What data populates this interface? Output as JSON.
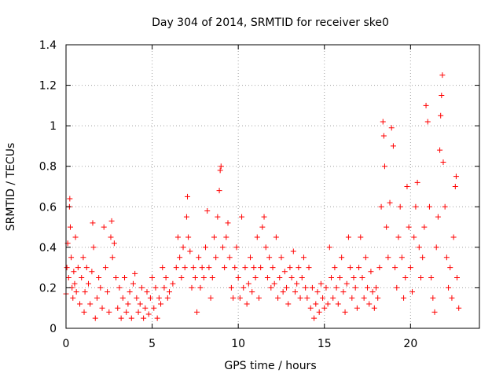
{
  "chart_data": {
    "type": "scatter",
    "title": "Day 304 of 2014, SRMTID for receiver ske0",
    "xlabel": "GPS time / hours",
    "ylabel": "SRMTID / TECUs",
    "xlim": [
      0,
      24
    ],
    "ylim": [
      0,
      1.4
    ],
    "xticks": [
      0,
      5,
      10,
      15,
      20
    ],
    "xtick_labels": [
      "0",
      "5",
      "10",
      "15",
      "20"
    ],
    "yticks": [
      0,
      0.2,
      0.4,
      0.6,
      0.8,
      1,
      1.2,
      1.4
    ],
    "ytick_labels": [
      "0",
      "0.2",
      "0.4",
      "0.6",
      "0.8",
      "1",
      "1.2",
      "1.4"
    ],
    "grid": true,
    "marker": "+",
    "color": "#ff0000",
    "series": [
      {
        "name": "ske0",
        "points": [
          [
            0.0,
            0.17
          ],
          [
            0.05,
            0.3
          ],
          [
            0.1,
            0.42
          ],
          [
            0.15,
            0.25
          ],
          [
            0.2,
            0.6
          ],
          [
            0.22,
            0.64
          ],
          [
            0.25,
            0.5
          ],
          [
            0.3,
            0.35
          ],
          [
            0.35,
            0.2
          ],
          [
            0.4,
            0.15
          ],
          [
            0.45,
            0.28
          ],
          [
            0.5,
            0.22
          ],
          [
            0.55,
            0.45
          ],
          [
            0.6,
            0.18
          ],
          [
            0.7,
            0.3
          ],
          [
            0.8,
            0.12
          ],
          [
            0.9,
            0.25
          ],
          [
            1.0,
            0.35
          ],
          [
            1.05,
            0.08
          ],
          [
            1.1,
            0.18
          ],
          [
            1.2,
            0.3
          ],
          [
            1.3,
            0.22
          ],
          [
            1.4,
            0.12
          ],
          [
            1.5,
            0.28
          ],
          [
            1.55,
            0.52
          ],
          [
            1.6,
            0.4
          ],
          [
            1.7,
            0.05
          ],
          [
            1.8,
            0.15
          ],
          [
            1.9,
            0.25
          ],
          [
            2.0,
            0.2
          ],
          [
            2.1,
            0.1
          ],
          [
            2.2,
            0.5
          ],
          [
            2.3,
            0.3
          ],
          [
            2.4,
            0.18
          ],
          [
            2.5,
            0.08
          ],
          [
            2.6,
            0.45
          ],
          [
            2.65,
            0.53
          ],
          [
            2.7,
            0.35
          ],
          [
            2.8,
            0.42
          ],
          [
            2.9,
            0.25
          ],
          [
            3.0,
            0.1
          ],
          [
            3.1,
            0.2
          ],
          [
            3.2,
            0.05
          ],
          [
            3.3,
            0.15
          ],
          [
            3.4,
            0.25
          ],
          [
            3.5,
            0.08
          ],
          [
            3.6,
            0.12
          ],
          [
            3.7,
            0.18
          ],
          [
            3.8,
            0.05
          ],
          [
            3.9,
            0.22
          ],
          [
            4.0,
            0.27
          ],
          [
            4.1,
            0.15
          ],
          [
            4.2,
            0.08
          ],
          [
            4.3,
            0.12
          ],
          [
            4.4,
            0.2
          ],
          [
            4.5,
            0.05
          ],
          [
            4.6,
            0.1
          ],
          [
            4.7,
            0.18
          ],
          [
            4.8,
            0.07
          ],
          [
            4.9,
            0.15
          ],
          [
            5.0,
            0.25
          ],
          [
            5.1,
            0.1
          ],
          [
            5.2,
            0.2
          ],
          [
            5.3,
            0.05
          ],
          [
            5.4,
            0.15
          ],
          [
            5.5,
            0.12
          ],
          [
            5.6,
            0.3
          ],
          [
            5.7,
            0.2
          ],
          [
            5.8,
            0.25
          ],
          [
            5.9,
            0.15
          ],
          [
            6.0,
            0.18
          ],
          [
            6.2,
            0.22
          ],
          [
            6.4,
            0.3
          ],
          [
            6.5,
            0.45
          ],
          [
            6.6,
            0.35
          ],
          [
            6.7,
            0.25
          ],
          [
            6.8,
            0.4
          ],
          [
            6.9,
            0.3
          ],
          [
            7.0,
            0.55
          ],
          [
            7.05,
            0.65
          ],
          [
            7.1,
            0.45
          ],
          [
            7.2,
            0.38
          ],
          [
            7.3,
            0.2
          ],
          [
            7.4,
            0.3
          ],
          [
            7.5,
            0.25
          ],
          [
            7.6,
            0.08
          ],
          [
            7.7,
            0.35
          ],
          [
            7.8,
            0.2
          ],
          [
            7.9,
            0.3
          ],
          [
            8.0,
            0.25
          ],
          [
            8.1,
            0.4
          ],
          [
            8.2,
            0.58
          ],
          [
            8.3,
            0.3
          ],
          [
            8.4,
            0.15
          ],
          [
            8.5,
            0.25
          ],
          [
            8.6,
            0.45
          ],
          [
            8.7,
            0.35
          ],
          [
            8.8,
            0.55
          ],
          [
            8.9,
            0.68
          ],
          [
            8.95,
            0.78
          ],
          [
            9.0,
            0.8
          ],
          [
            9.1,
            0.4
          ],
          [
            9.2,
            0.3
          ],
          [
            9.3,
            0.45
          ],
          [
            9.4,
            0.52
          ],
          [
            9.5,
            0.35
          ],
          [
            9.6,
            0.2
          ],
          [
            9.7,
            0.15
          ],
          [
            9.8,
            0.3
          ],
          [
            9.9,
            0.4
          ],
          [
            10.0,
            0.25
          ],
          [
            10.1,
            0.15
          ],
          [
            10.2,
            0.55
          ],
          [
            10.3,
            0.2
          ],
          [
            10.4,
            0.3
          ],
          [
            10.5,
            0.12
          ],
          [
            10.6,
            0.22
          ],
          [
            10.7,
            0.35
          ],
          [
            10.8,
            0.18
          ],
          [
            10.9,
            0.3
          ],
          [
            11.0,
            0.25
          ],
          [
            11.1,
            0.45
          ],
          [
            11.2,
            0.15
          ],
          [
            11.3,
            0.3
          ],
          [
            11.4,
            0.5
          ],
          [
            11.5,
            0.55
          ],
          [
            11.6,
            0.4
          ],
          [
            11.7,
            0.25
          ],
          [
            11.8,
            0.35
          ],
          [
            11.9,
            0.2
          ],
          [
            12.0,
            0.3
          ],
          [
            12.1,
            0.22
          ],
          [
            12.2,
            0.45
          ],
          [
            12.3,
            0.15
          ],
          [
            12.4,
            0.25
          ],
          [
            12.5,
            0.35
          ],
          [
            12.6,
            0.18
          ],
          [
            12.7,
            0.28
          ],
          [
            12.8,
            0.2
          ],
          [
            12.9,
            0.12
          ],
          [
            13.0,
            0.3
          ],
          [
            13.1,
            0.25
          ],
          [
            13.2,
            0.38
          ],
          [
            13.3,
            0.18
          ],
          [
            13.4,
            0.22
          ],
          [
            13.5,
            0.3
          ],
          [
            13.6,
            0.15
          ],
          [
            13.7,
            0.25
          ],
          [
            13.8,
            0.35
          ],
          [
            13.9,
            0.2
          ],
          [
            14.0,
            0.15
          ],
          [
            14.1,
            0.3
          ],
          [
            14.2,
            0.1
          ],
          [
            14.3,
            0.2
          ],
          [
            14.4,
            0.05
          ],
          [
            14.5,
            0.12
          ],
          [
            14.6,
            0.18
          ],
          [
            14.7,
            0.08
          ],
          [
            14.8,
            0.22
          ],
          [
            14.9,
            0.15
          ],
          [
            15.0,
            0.1
          ],
          [
            15.1,
            0.2
          ],
          [
            15.2,
            0.12
          ],
          [
            15.3,
            0.4
          ],
          [
            15.4,
            0.25
          ],
          [
            15.5,
            0.15
          ],
          [
            15.6,
            0.3
          ],
          [
            15.7,
            0.2
          ],
          [
            15.8,
            0.12
          ],
          [
            15.9,
            0.25
          ],
          [
            16.0,
            0.35
          ],
          [
            16.1,
            0.18
          ],
          [
            16.2,
            0.08
          ],
          [
            16.3,
            0.22
          ],
          [
            16.4,
            0.45
          ],
          [
            16.5,
            0.3
          ],
          [
            16.6,
            0.15
          ],
          [
            16.7,
            0.25
          ],
          [
            16.8,
            0.2
          ],
          [
            16.9,
            0.1
          ],
          [
            17.0,
            0.3
          ],
          [
            17.1,
            0.45
          ],
          [
            17.2,
            0.25
          ],
          [
            17.3,
            0.15
          ],
          [
            17.4,
            0.35
          ],
          [
            17.5,
            0.2
          ],
          [
            17.6,
            0.12
          ],
          [
            17.7,
            0.28
          ],
          [
            17.8,
            0.18
          ],
          [
            17.9,
            0.1
          ],
          [
            18.0,
            0.2
          ],
          [
            18.1,
            0.15
          ],
          [
            18.2,
            0.3
          ],
          [
            18.3,
            0.6
          ],
          [
            18.4,
            1.02
          ],
          [
            18.45,
            0.95
          ],
          [
            18.5,
            0.8
          ],
          [
            18.6,
            0.5
          ],
          [
            18.7,
            0.35
          ],
          [
            18.8,
            0.62
          ],
          [
            18.9,
            0.99
          ],
          [
            19.0,
            0.9
          ],
          [
            19.1,
            0.3
          ],
          [
            19.2,
            0.2
          ],
          [
            19.3,
            0.45
          ],
          [
            19.4,
            0.6
          ],
          [
            19.5,
            0.35
          ],
          [
            19.6,
            0.15
          ],
          [
            19.7,
            0.25
          ],
          [
            19.8,
            0.7
          ],
          [
            19.9,
            0.5
          ],
          [
            20.0,
            0.3
          ],
          [
            20.1,
            0.18
          ],
          [
            20.2,
            0.45
          ],
          [
            20.3,
            0.6
          ],
          [
            20.4,
            0.72
          ],
          [
            20.5,
            0.4
          ],
          [
            20.6,
            0.25
          ],
          [
            20.7,
            0.35
          ],
          [
            20.8,
            0.5
          ],
          [
            20.9,
            1.1
          ],
          [
            21.0,
            1.02
          ],
          [
            21.1,
            0.6
          ],
          [
            21.2,
            0.25
          ],
          [
            21.3,
            0.15
          ],
          [
            21.4,
            0.08
          ],
          [
            21.5,
            0.4
          ],
          [
            21.6,
            0.55
          ],
          [
            21.7,
            0.88
          ],
          [
            21.75,
            1.05
          ],
          [
            21.8,
            1.15
          ],
          [
            21.85,
            1.25
          ],
          [
            21.9,
            0.82
          ],
          [
            22.0,
            0.6
          ],
          [
            22.1,
            0.35
          ],
          [
            22.2,
            0.2
          ],
          [
            22.3,
            0.3
          ],
          [
            22.4,
            0.15
          ],
          [
            22.5,
            0.45
          ],
          [
            22.6,
            0.7
          ],
          [
            22.65,
            0.75
          ],
          [
            22.7,
            0.25
          ],
          [
            22.8,
            0.1
          ]
        ]
      }
    ]
  }
}
